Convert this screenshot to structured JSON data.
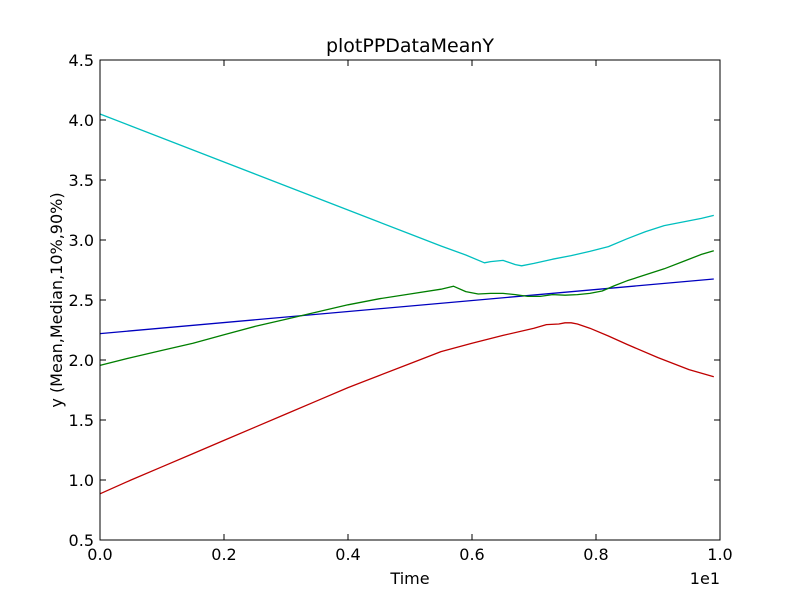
{
  "chart_data": {
    "type": "line",
    "title": "plotPPDataMeanY",
    "xlabel": "Time",
    "ylabel": "y (Mean,Median,10%,90%)",
    "x_offset_label": "1e1",
    "xlim": [
      0,
      1.0
    ],
    "ylim": [
      0.5,
      4.5
    ],
    "x_ticks": [
      "0.0",
      "0.2",
      "0.4",
      "0.6",
      "0.8",
      "1.0"
    ],
    "y_ticks": [
      "0.5",
      "1.0",
      "1.5",
      "2.0",
      "2.5",
      "3.0",
      "3.5",
      "4.0",
      "4.5"
    ],
    "grid": false,
    "series": [
      {
        "color": "#0000bf",
        "x": [
          0.0,
          0.99
        ],
        "y": [
          2.22,
          2.675
        ]
      },
      {
        "color": "#007f00",
        "x": [
          0.0,
          0.05,
          0.1,
          0.15,
          0.2,
          0.25,
          0.3,
          0.35,
          0.4,
          0.45,
          0.5,
          0.55,
          0.57,
          0.59,
          0.61,
          0.63,
          0.65,
          0.67,
          0.69,
          0.71,
          0.73,
          0.75,
          0.77,
          0.79,
          0.81,
          0.83,
          0.85,
          0.88,
          0.91,
          0.94,
          0.97,
          0.99
        ],
        "y": [
          1.955,
          2.02,
          2.08,
          2.14,
          2.21,
          2.28,
          2.34,
          2.4,
          2.46,
          2.51,
          2.55,
          2.59,
          2.615,
          2.57,
          2.55,
          2.555,
          2.555,
          2.545,
          2.53,
          2.53,
          2.545,
          2.54,
          2.545,
          2.555,
          2.575,
          2.62,
          2.66,
          2.71,
          2.76,
          2.82,
          2.88,
          2.91
        ]
      },
      {
        "color": "#bf0000",
        "x": [
          0.0,
          0.05,
          0.1,
          0.15,
          0.2,
          0.25,
          0.3,
          0.35,
          0.4,
          0.45,
          0.5,
          0.55,
          0.6,
          0.65,
          0.7,
          0.72,
          0.74,
          0.75,
          0.76,
          0.77,
          0.79,
          0.82,
          0.85,
          0.9,
          0.95,
          0.99
        ],
        "y": [
          0.885,
          1.0,
          1.11,
          1.22,
          1.33,
          1.44,
          1.55,
          1.66,
          1.77,
          1.87,
          1.97,
          2.07,
          2.14,
          2.205,
          2.265,
          2.295,
          2.3,
          2.31,
          2.31,
          2.3,
          2.265,
          2.2,
          2.13,
          2.02,
          1.92,
          1.86
        ]
      },
      {
        "color": "#00bfbf",
        "x": [
          0.0,
          0.05,
          0.1,
          0.15,
          0.2,
          0.25,
          0.3,
          0.35,
          0.4,
          0.45,
          0.5,
          0.55,
          0.59,
          0.62,
          0.63,
          0.65,
          0.67,
          0.68,
          0.7,
          0.73,
          0.76,
          0.79,
          0.82,
          0.85,
          0.88,
          0.91,
          0.94,
          0.97,
          0.99
        ],
        "y": [
          4.05,
          3.95,
          3.85,
          3.75,
          3.65,
          3.55,
          3.45,
          3.35,
          3.25,
          3.15,
          3.05,
          2.95,
          2.875,
          2.81,
          2.82,
          2.83,
          2.795,
          2.785,
          2.805,
          2.84,
          2.87,
          2.905,
          2.945,
          3.01,
          3.07,
          3.12,
          3.15,
          3.18,
          3.205
        ]
      }
    ]
  }
}
